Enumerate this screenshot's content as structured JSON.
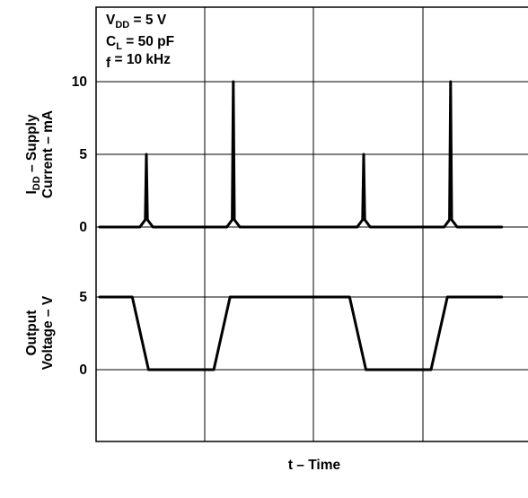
{
  "chart_data": {
    "type": "line",
    "title": "",
    "xlabel": "t – Time",
    "x_ticks": [],
    "grid": true,
    "conditions": [
      {
        "main": "V",
        "sub": "DD",
        "rest": " = 5 V"
      },
      {
        "main": "C",
        "sub": "L",
        "rest": " = 50 pF"
      },
      {
        "main": "f",
        "sub": "",
        "rest": " = 10 kHz"
      }
    ],
    "panels": [
      {
        "name": "supply-current",
        "ylabel_lines": [
          {
            "main": "I",
            "sub": "DD",
            "rest": " – Supply"
          },
          {
            "main": "Current – mA",
            "sub": "",
            "rest": ""
          }
        ],
        "y_ticks": [
          0,
          5,
          10
        ],
        "series": [
          {
            "name": "",
            "x": [
              0,
              0.37,
              0.42,
              0.43,
              0.44,
              0.49,
              1.17,
              1.22,
              1.23,
              1.24,
              1.29,
              2.37,
              2.42,
              2.43,
              2.44,
              2.49,
              3.17,
              3.22,
              3.23,
              3.24,
              3.29,
              3.7
            ],
            "y": [
              0,
              0,
              0.5,
              5,
              0.5,
              0,
              0,
              0.5,
              10,
              0.5,
              0,
              0,
              0.5,
              5,
              0.5,
              0,
              0,
              0.5,
              10,
              0.5,
              0,
              0
            ]
          }
        ]
      },
      {
        "name": "output-voltage",
        "ylabel_lines": [
          {
            "main": "Output",
            "sub": "",
            "rest": ""
          },
          {
            "main": "Voltage – V",
            "sub": "",
            "rest": ""
          }
        ],
        "y_ticks": [
          0,
          5
        ],
        "series": [
          {
            "name": "",
            "x": [
              0,
              0.3,
              0.45,
              1.05,
              1.2,
              2.3,
              2.45,
              3.05,
              3.2,
              3.7
            ],
            "y": [
              5,
              5,
              0,
              0,
              5,
              5,
              0,
              0,
              5,
              5
            ]
          }
        ]
      }
    ]
  }
}
